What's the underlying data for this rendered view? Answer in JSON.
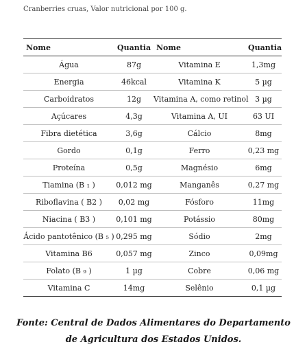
{
  "caption": "Cranberries cruas, Valor nutricional por 100 g.",
  "table": {
    "headers": [
      "Nome",
      "Quantia",
      "Nome",
      "Quantia"
    ],
    "rows": [
      [
        "Água",
        "87g",
        "Vitamina E",
        "1,3mg"
      ],
      [
        "Energia",
        "46kcal",
        "Vitamina K",
        "5 µg"
      ],
      [
        "Carboidratos",
        "12g",
        "Vitamina A, como retinol",
        "3 µg"
      ],
      [
        "Açúcares",
        "4,3g",
        "Vitamina A, UI",
        "63 UI"
      ],
      [
        "Fibra dietética",
        "3,6g",
        "Cálcio",
        "8mg"
      ],
      [
        "Gordo",
        "0,1g",
        "Ferro",
        "0,23 mg"
      ],
      [
        "Proteína",
        "0,5g",
        "Magnésio",
        "6mg"
      ],
      [
        "Tiamina (B ₁ )",
        "0,012 mg",
        "Manganês",
        "0,27 mg"
      ],
      [
        "Riboflavina ( B2 )",
        "0,02 mg",
        "Fósforo",
        "11mg"
      ],
      [
        "Niacina ( B3 )",
        "0,101 mg",
        "Potássio",
        "80mg"
      ],
      [
        "Ácido pantotênico (B ₅ )",
        "0,295 mg",
        "Sódio",
        "2mg"
      ],
      [
        "Vitamina B6",
        "0,057 mg",
        "Zinco",
        "0,09mg"
      ],
      [
        "Folato (B ₉ )",
        "1 µg",
        "Cobre",
        "0,06 mg"
      ],
      [
        "Vitamina C",
        "14mg",
        "Selênio",
        "0,1 µg"
      ]
    ]
  },
  "source_line1": "Fonte: Central de Dados Alimentares do Departamento",
  "source_line2": "de Agricultura dos Estados Unidos."
}
